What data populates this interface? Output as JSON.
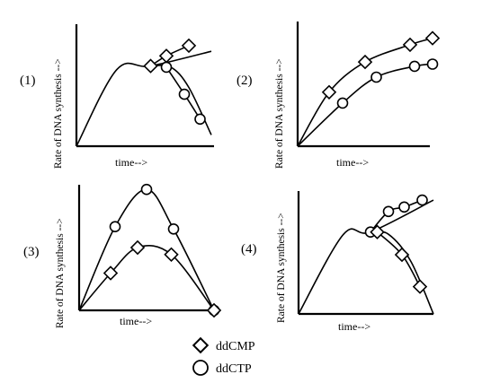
{
  "legend": [
    {
      "marker": "diamond",
      "label": "ddCMP"
    },
    {
      "marker": "circle",
      "label": "ddCTP"
    }
  ],
  "chart_data": [
    {
      "type": "line",
      "panel_label": "(1)",
      "xlabel": "time-->",
      "ylabel": "Rate of DNA synthesis -->",
      "series": [
        {
          "marker": "none",
          "x": [
            0,
            1.8,
            3.3,
            6.0
          ],
          "y": [
            0,
            3.4,
            3.55,
            4.2
          ]
        },
        {
          "marker": "diamond",
          "x": [
            3.3,
            4.0,
            5.0
          ],
          "y": [
            3.55,
            4.0,
            4.45
          ]
        },
        {
          "marker": "none",
          "x": [
            3.3,
            4.2,
            5.0,
            6.0
          ],
          "y": [
            3.55,
            3.5,
            2.6,
            0.5
          ]
        },
        {
          "marker": "circle",
          "x": [
            4.0,
            4.8,
            5.5
          ],
          "y": [
            3.5,
            2.3,
            1.2
          ]
        }
      ]
    },
    {
      "type": "line",
      "panel_label": "(2)",
      "xlabel": "time-->",
      "ylabel": "Rate of DNA synthesis -->",
      "series": [
        {
          "marker": "diamond",
          "x": [
            0,
            1.4,
            3.0,
            5.0,
            6.0
          ],
          "y": [
            0,
            2.5,
            3.9,
            4.7,
            5.0
          ]
        },
        {
          "marker": "circle",
          "x": [
            0,
            2.0,
            3.5,
            5.2,
            6.0
          ],
          "y": [
            0,
            2.0,
            3.2,
            3.7,
            3.8
          ]
        }
      ]
    },
    {
      "type": "line",
      "panel_label": "(3)",
      "xlabel": "time-->",
      "ylabel": "Rate of DNA synthesis -->",
      "series": [
        {
          "marker": "circle",
          "x": [
            0,
            1.6,
            3.0,
            4.2,
            6.0
          ],
          "y": [
            0,
            3.6,
            5.2,
            3.5,
            0
          ]
        },
        {
          "marker": "diamond",
          "x": [
            0,
            1.4,
            2.6,
            4.1,
            6.0
          ],
          "y": [
            0,
            1.6,
            2.7,
            2.4,
            0
          ]
        }
      ]
    },
    {
      "type": "line",
      "panel_label": "(4)",
      "xlabel": "time-->",
      "ylabel": "Rate of DNA synthesis -->",
      "series": [
        {
          "marker": "none",
          "x": [
            0,
            2.0,
            3.2,
            6.0
          ],
          "y": [
            0,
            3.5,
            3.6,
            5.0
          ]
        },
        {
          "marker": "circle",
          "x": [
            3.2,
            4.0,
            4.7,
            5.5
          ],
          "y": [
            3.6,
            4.5,
            4.7,
            5.0
          ]
        },
        {
          "marker": "none",
          "x": [
            3.2,
            4.0,
            5.0,
            6.0
          ],
          "y": [
            3.6,
            3.5,
            2.3,
            0
          ]
        },
        {
          "marker": "diamond",
          "x": [
            3.5,
            4.6,
            5.4
          ],
          "y": [
            3.6,
            2.6,
            1.2
          ]
        }
      ]
    }
  ]
}
